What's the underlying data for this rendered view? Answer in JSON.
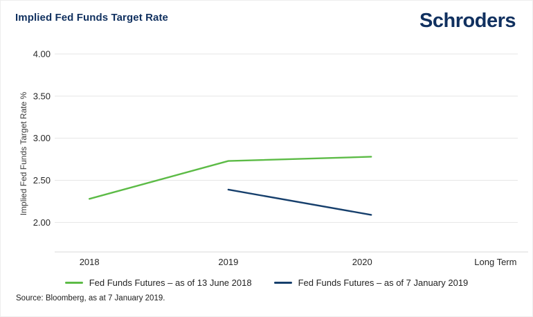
{
  "header": {
    "title": "Implied Fed Funds Target Rate",
    "logo_text": "Schroders"
  },
  "source_note": "Source: Bloomberg, as at 7 January 2019.",
  "colors": {
    "brand_navy": "#10305f",
    "gridline": "#e5e5e5",
    "axis_line": "#d8d8d8",
    "tick_text": "#262626"
  },
  "chart_data": {
    "type": "line",
    "title": "Implied Fed Funds Target Rate",
    "xlabel": "",
    "ylabel": "Implied Fed Funds Target Rate %",
    "categories": [
      "2018",
      "2019",
      "2020",
      "Long Term"
    ],
    "y_ticks": [
      4.0,
      3.5,
      3.0,
      2.5,
      2.0
    ],
    "ylim": [
      1.65,
      4.0
    ],
    "grid": "horizontal",
    "legend_position": "bottom",
    "series": [
      {
        "name": "Fed Funds Futures – as of 13 June 2018",
        "color": "#5cbb46",
        "categories": [
          "2018",
          "2019",
          "2020"
        ],
        "values": [
          2.28,
          2.73,
          2.78
        ]
      },
      {
        "name": "Fed Funds Futures – as of 7 January 2019",
        "color": "#163f6c",
        "categories": [
          "2019",
          "2020"
        ],
        "values": [
          2.39,
          2.09
        ]
      }
    ]
  }
}
